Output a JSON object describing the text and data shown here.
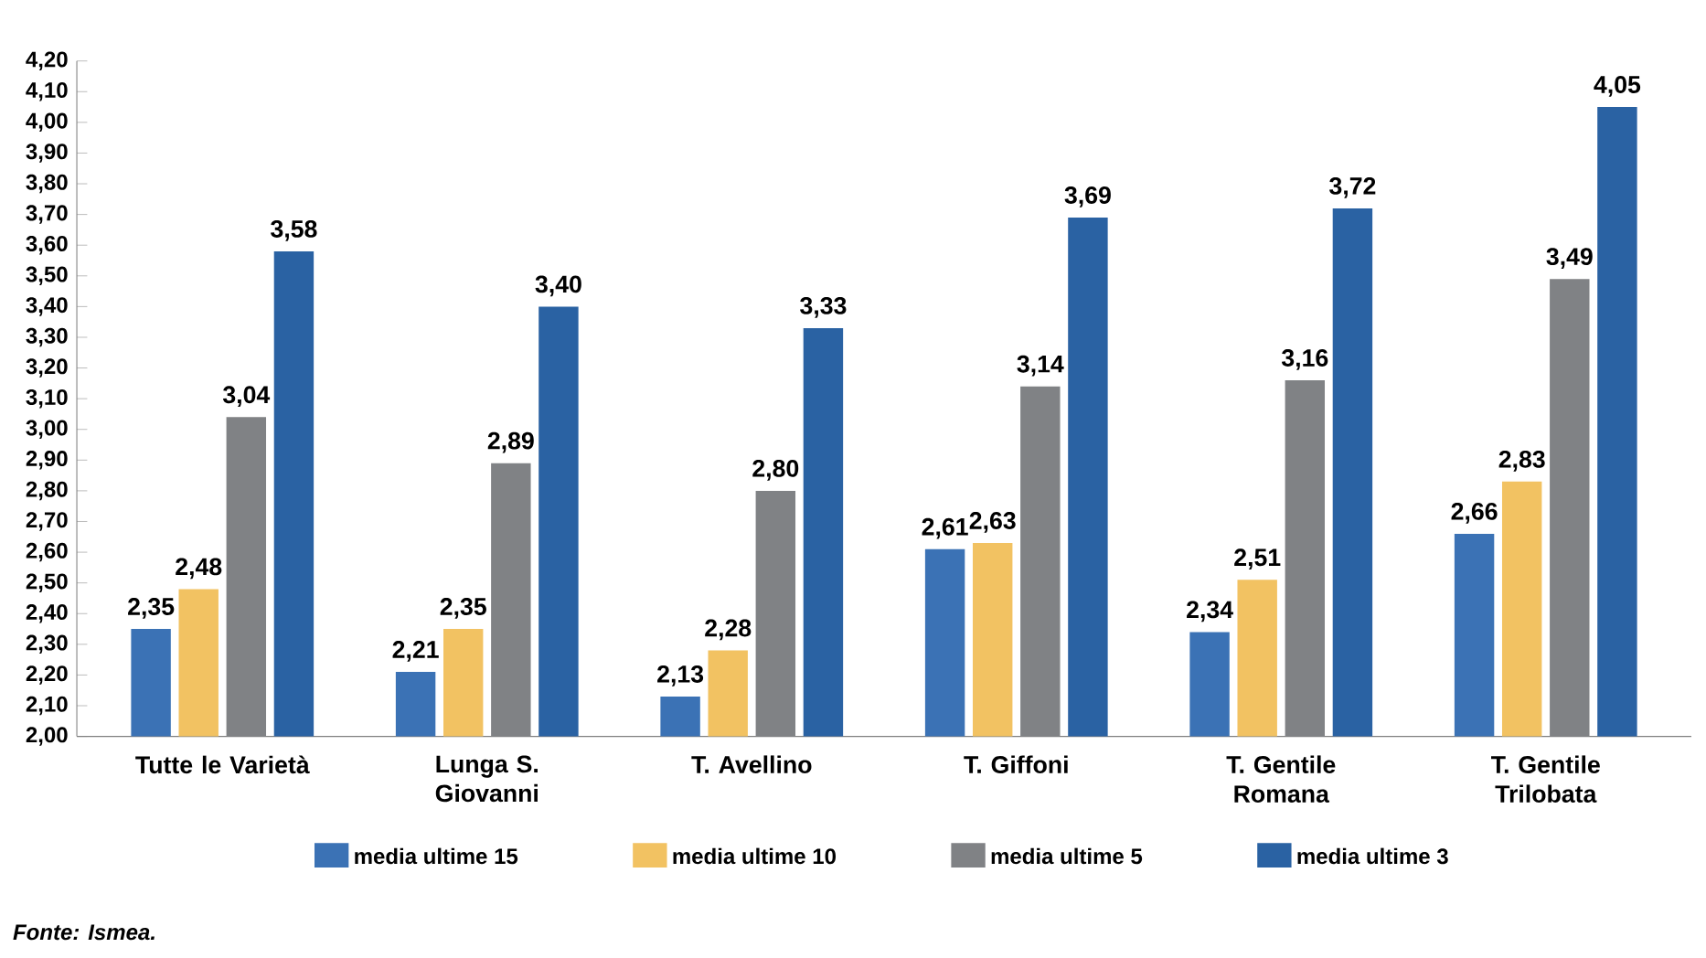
{
  "chart_data": {
    "type": "bar",
    "categories": [
      "Tutte le Varietà",
      "Lunga S. Giovanni",
      "T. Avellino",
      "T. Giffoni",
      "T. Gentile Romana",
      "T. Gentile Trilobata"
    ],
    "series": [
      {
        "name": "media ultime 15",
        "color": "#3b72b5",
        "values": [
          2.35,
          2.21,
          2.13,
          2.61,
          2.34,
          2.66
        ],
        "value_labels": [
          "2,35",
          "2,21",
          "2,13",
          "2,61",
          "2,34",
          "2,66"
        ]
      },
      {
        "name": "media ultime 10",
        "color": "#f2c262",
        "values": [
          2.48,
          2.35,
          2.28,
          2.63,
          2.51,
          2.83
        ],
        "value_labels": [
          "2,48",
          "2,35",
          "2,28",
          "2,63",
          "2,51",
          "2,83"
        ]
      },
      {
        "name": "media ultime 5",
        "color": "#808285",
        "values": [
          3.04,
          2.89,
          2.8,
          3.14,
          3.16,
          3.49
        ],
        "value_labels": [
          "3,04",
          "2,89",
          "2,80",
          "3,14",
          "3,16",
          "3,49"
        ]
      },
      {
        "name": "media ultime 3",
        "color": "#2a62a3",
        "values": [
          3.58,
          3.4,
          3.33,
          3.69,
          3.72,
          4.05
        ],
        "value_labels": [
          "3,58",
          "3,40",
          "3,33",
          "3,69",
          "3,72",
          "4,05"
        ]
      }
    ],
    "ylim": [
      2.0,
      4.2
    ],
    "yticks": [
      {
        "value": 2.0,
        "label": "2,00"
      },
      {
        "value": 2.1,
        "label": "2,10"
      },
      {
        "value": 2.2,
        "label": "2,20"
      },
      {
        "value": 2.3,
        "label": "2,30"
      },
      {
        "value": 2.4,
        "label": "2,40"
      },
      {
        "value": 2.5,
        "label": "2,50"
      },
      {
        "value": 2.6,
        "label": "2,60"
      },
      {
        "value": 2.7,
        "label": "2,70"
      },
      {
        "value": 2.8,
        "label": "2,80"
      },
      {
        "value": 2.9,
        "label": "2,90"
      },
      {
        "value": 3.0,
        "label": "3,00"
      },
      {
        "value": 3.1,
        "label": "3,10"
      },
      {
        "value": 3.2,
        "label": "3,20"
      },
      {
        "value": 3.3,
        "label": "3,30"
      },
      {
        "value": 3.4,
        "label": "3,40"
      },
      {
        "value": 3.5,
        "label": "3,50"
      },
      {
        "value": 3.6,
        "label": "3,60"
      },
      {
        "value": 3.7,
        "label": "3,70"
      },
      {
        "value": 3.8,
        "label": "3,80"
      },
      {
        "value": 3.9,
        "label": "3,90"
      },
      {
        "value": 4.0,
        "label": "4,00"
      },
      {
        "value": 4.1,
        "label": "4,10"
      },
      {
        "value": 4.2,
        "label": "4,20"
      }
    ],
    "grid": false,
    "legend": "bottom",
    "annotations": [
      "*Fonte: Ismea.*"
    ]
  }
}
